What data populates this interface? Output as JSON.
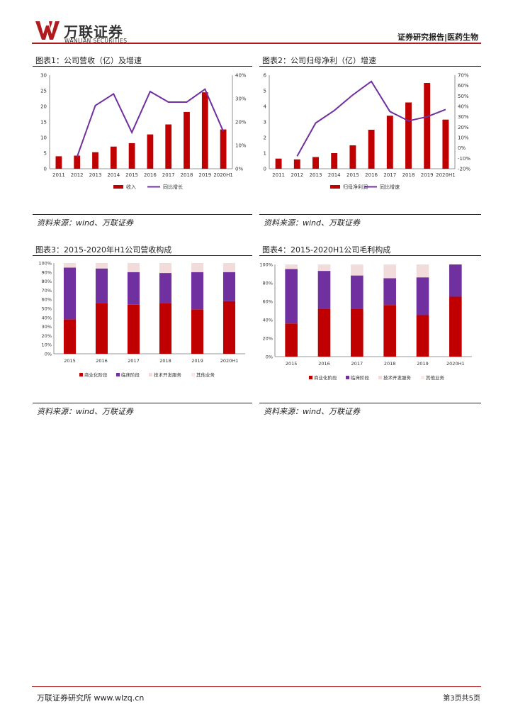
{
  "header": {
    "brand_cn": "万联证券",
    "brand_en": "WANLIAN SECURITIES",
    "report_type": "证券研究报告|医药生物"
  },
  "colors": {
    "accent": "#b01c1e",
    "revenue_red": "#c00000",
    "growth_purple": "#7030a0",
    "tech_service_pink": "#f2dcdb"
  },
  "figures": [
    {
      "title": "图表1：公司营收（亿）及增速",
      "source": "资料来源：wind、万联证券",
      "chart_data": {
        "type": "bar",
        "categories": [
          "2011",
          "2012",
          "2013",
          "2014",
          "2015",
          "2016",
          "2017",
          "2018",
          "2019",
          "2020H1"
        ],
        "series": [
          {
            "name": "收入",
            "type": "bar",
            "axis": "left",
            "color": "#c00000",
            "values": [
              4.0,
              4.2,
              5.3,
              7.1,
              8.2,
              11.0,
              14.2,
              18.2,
              24.5,
              12.6
            ]
          },
          {
            "name": "同比增长",
            "type": "line",
            "axis": "right",
            "color": "#7030a0",
            "values": [
              null,
              5.0,
              27.0,
              32.0,
              15.5,
              33.0,
              28.5,
              28.5,
              34.0,
              16.0
            ]
          }
        ],
        "y_left": {
          "min": 0,
          "max": 30,
          "ticks": [
            0,
            5,
            10,
            15,
            20,
            25,
            30
          ],
          "tick_labels": [
            "0",
            "5",
            "10",
            "15",
            "20",
            "25",
            "30"
          ]
        },
        "y_right": {
          "min": 0,
          "max": 40,
          "ticks": [
            0,
            10,
            20,
            30,
            40
          ],
          "tick_labels": [
            "0%",
            "10%",
            "20%",
            "30%",
            "40%"
          ]
        },
        "legend_position": "bottom",
        "grid": false
      }
    },
    {
      "title": "图表2：公司归母净利（亿）增速",
      "source": "资料来源：wind、万联证券",
      "chart_data": {
        "type": "bar",
        "categories": [
          "2011",
          "2012",
          "2013",
          "2014",
          "2015",
          "2016",
          "2017",
          "2018",
          "2019",
          "2020H1"
        ],
        "series": [
          {
            "name": "归母净利润",
            "type": "bar",
            "axis": "left",
            "color": "#c00000",
            "values": [
              0.65,
              0.6,
              0.75,
              1.0,
              1.5,
              2.5,
              3.4,
              4.25,
              5.5,
              3.15
            ]
          },
          {
            "name": "同比增速",
            "type": "line",
            "axis": "right",
            "color": "#7030a0",
            "values": [
              null,
              -8.0,
              24.0,
              36.0,
              51.0,
              64.0,
              35.0,
              26.0,
              30.0,
              37.0
            ]
          }
        ],
        "y_left": {
          "min": 0,
          "max": 6,
          "ticks": [
            0,
            1,
            2,
            3,
            4,
            5,
            6
          ],
          "tick_labels": [
            "0",
            "1",
            "2",
            "3",
            "4",
            "5",
            "6"
          ]
        },
        "y_right": {
          "min": -20,
          "max": 70,
          "ticks": [
            -20,
            -10,
            0,
            10,
            20,
            30,
            40,
            50,
            60,
            70
          ],
          "tick_labels": [
            "-20%",
            "-10%",
            "0%",
            "10%",
            "20%",
            "30%",
            "40%",
            "50%",
            "60%",
            "70%"
          ]
        },
        "legend_position": "bottom",
        "grid": false
      }
    },
    {
      "title": "图表3：2015-2020年H1公司营收构成",
      "source": "资料来源：wind、万联证券",
      "chart_data": {
        "type": "bar",
        "stacked": true,
        "categories": [
          "2015",
          "2016",
          "2017",
          "2018",
          "2019",
          "2020H1"
        ],
        "series": [
          {
            "name": "商业化阶段",
            "color": "#c00000",
            "values": [
              38,
              56,
              54,
              56,
              49,
              58
            ]
          },
          {
            "name": "临床阶段",
            "color": "#7030a0",
            "values": [
              57,
              38,
              36,
              33,
              41,
              32
            ]
          },
          {
            "name": "技术开发服务",
            "color": "#f2dcdb",
            "values": [
              5,
              6,
              10,
              11,
              10,
              10
            ]
          },
          {
            "name": "其他业务",
            "color": "#fbe9e7",
            "values": [
              0,
              0,
              0,
              0,
              0,
              0
            ]
          }
        ],
        "y": {
          "min": 0,
          "max": 100,
          "ticks": [
            0,
            10,
            20,
            30,
            40,
            50,
            60,
            70,
            80,
            90,
            100
          ],
          "tick_labels": [
            "0%",
            "10%",
            "20%",
            "30%",
            "40%",
            "50%",
            "60%",
            "70%",
            "80%",
            "90%",
            "100%"
          ]
        },
        "legend_position": "bottom",
        "grid": false
      }
    },
    {
      "title": "图表4：2015-2020H1公司毛利构成",
      "source": "资料来源：wind、万联证券",
      "chart_data": {
        "type": "bar",
        "stacked": true,
        "categories": [
          "2015",
          "2016",
          "2017",
          "2018",
          "2019",
          "2020H1"
        ],
        "series": [
          {
            "name": "商业化阶段",
            "color": "#c00000",
            "values": [
              36,
              52,
              52,
              56,
              45,
              65
            ]
          },
          {
            "name": "临床阶段",
            "color": "#7030a0",
            "values": [
              59,
              41,
              36,
              29,
              41,
              35
            ]
          },
          {
            "name": "技术开发服务",
            "color": "#f2dcdb",
            "values": [
              5,
              7,
              12,
              15,
              14,
              0
            ]
          },
          {
            "name": "其他业务",
            "color": "#fbe9e7",
            "values": [
              0,
              0,
              0,
              0,
              0,
              0
            ]
          }
        ],
        "y": {
          "min": 0,
          "max": 100,
          "ticks": [
            0,
            20,
            40,
            60,
            80,
            100
          ],
          "tick_labels": [
            "0%",
            "20%",
            "40%",
            "60%",
            "80%",
            "100%"
          ]
        },
        "legend_position": "bottom",
        "grid": false
      }
    }
  ],
  "footer": {
    "left": "万联证券研究所 www.wlzq.cn",
    "right": "第3页共5页"
  }
}
